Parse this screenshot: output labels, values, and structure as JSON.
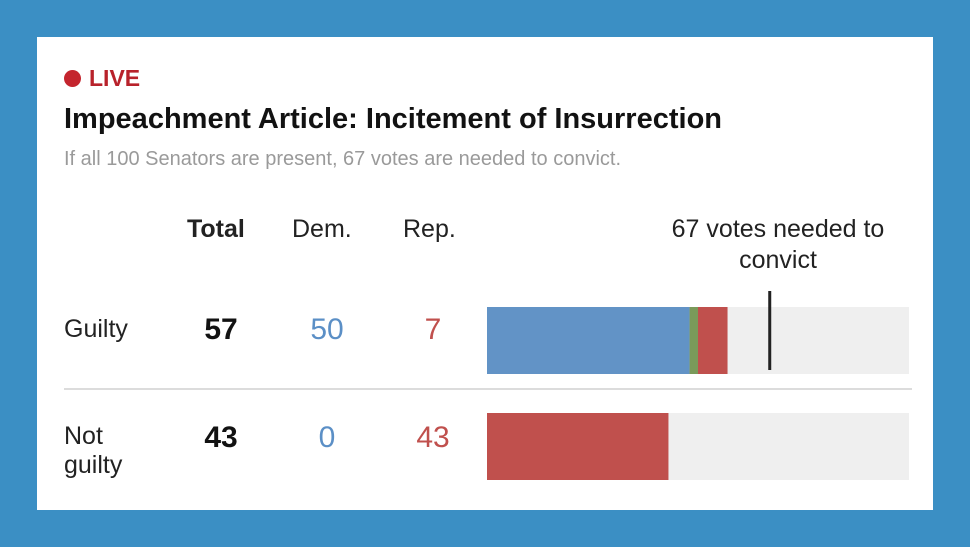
{
  "header": {
    "live_label": "LIVE",
    "title": "Impeachment Article: Incitement of Insurrection",
    "subtitle": "If all 100 Senators are present, 67 votes are needed to convict."
  },
  "columns": {
    "total": "Total",
    "dem": "Dem.",
    "rep": "Rep."
  },
  "threshold_note": "67 votes needed to convict",
  "colors": {
    "background": "#3b8fc4",
    "dem": "#6293c6",
    "rep": "#c0504d",
    "ind": "#7a9a5a",
    "track": "#efefef",
    "threshold": "#222222"
  },
  "rows": [
    {
      "label": "Guilty",
      "total": "57",
      "dem": "50",
      "rep": "7"
    },
    {
      "label": "Not guilty",
      "total": "43",
      "dem": "0",
      "rep": "43"
    }
  ],
  "chart_data": {
    "type": "bar",
    "orientation": "horizontal",
    "stacked": true,
    "categories": [
      "Guilty",
      "Not guilty"
    ],
    "series": [
      {
        "name": "Dem.",
        "values": [
          48,
          0
        ]
      },
      {
        "name": "Ind.",
        "values": [
          2,
          0
        ]
      },
      {
        "name": "Rep.",
        "values": [
          7,
          43
        ]
      }
    ],
    "xlim": [
      0,
      100
    ],
    "threshold": 67,
    "title": "Impeachment Article: Incitement of Insurrection"
  }
}
